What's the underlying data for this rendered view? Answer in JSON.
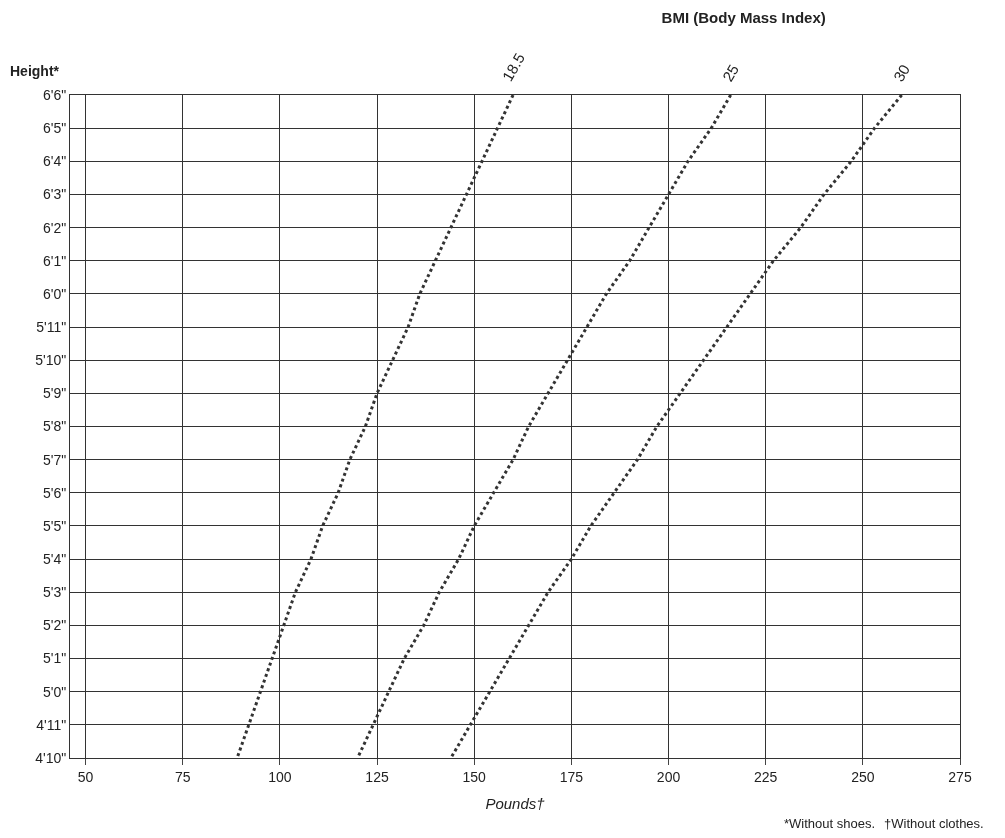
{
  "chart_data": {
    "type": "line",
    "orientation": "horizontal",
    "title": "BMI (Body Mass Index)",
    "xlabel": "Pounds†",
    "ylabel": "Height*",
    "annotations": [
      "*Without shoes.",
      "†Without clothes."
    ],
    "xlim": [
      46,
      275
    ],
    "xticks": [
      50,
      75,
      100,
      125,
      150,
      175,
      200,
      225,
      250,
      275
    ],
    "categories": [
      "6'6\"",
      "6'5\"",
      "6'4\"",
      "6'3\"",
      "6'2\"",
      "6'1\"",
      "6'0\"",
      "5'11\"",
      "5'10\"",
      "5'9\"",
      "5'8\"",
      "5'7\"",
      "5'6\"",
      "5'5\"",
      "5'4\"",
      "5'3\"",
      "5'2\"",
      "5'1\"",
      "5'0\"",
      "4'11\"",
      "4'10\""
    ],
    "grid": true,
    "legend": false,
    "line_style": "dotted",
    "series": [
      {
        "name": "18.5",
        "color": "#333333",
        "values": [
          160,
          156,
          152,
          148,
          144,
          140,
          136,
          133,
          129,
          125,
          122,
          118,
          115,
          111,
          108,
          104,
          101,
          98,
          95,
          92,
          89
        ]
      },
      {
        "name": "25",
        "color": "#333333",
        "values": [
          216,
          211,
          205,
          200,
          195,
          190,
          184,
          179,
          174,
          169,
          164,
          160,
          155,
          150,
          146,
          141,
          137,
          132,
          128,
          124,
          120
        ]
      },
      {
        "name": "30",
        "color": "#333333",
        "values": [
          260,
          253,
          247,
          240,
          234,
          227,
          221,
          215,
          209,
          203,
          197,
          192,
          186,
          180,
          175,
          169,
          164,
          159,
          154,
          149,
          144
        ]
      }
    ]
  }
}
